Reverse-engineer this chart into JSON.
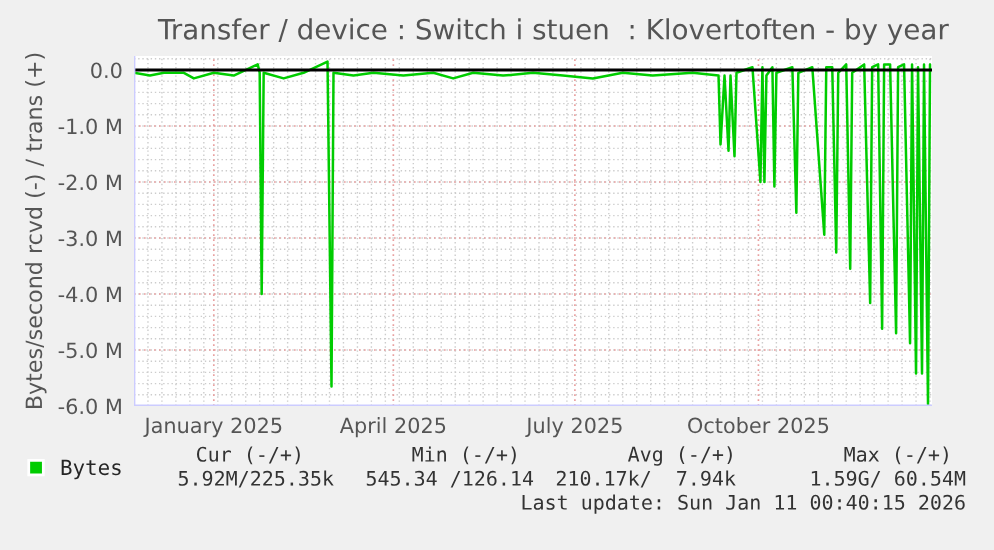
{
  "chart_data": {
    "type": "line",
    "title": "Transfer / device : Switch i stuen  : Klovertoften - by year",
    "ylabel": "Bytes/second rcvd (-) / trans (+)",
    "x": [
      "2024-12-07",
      "2024-12-15",
      "2024-12-22",
      "2025-01-01",
      "2025-01-06",
      "2025-01-16",
      "2025-01-26",
      "2025-02-07",
      "2025-02-08",
      "2025-02-09",
      "2025-02-10",
      "2025-02-20",
      "2025-03-02",
      "2025-03-14",
      "2025-03-16",
      "2025-03-17",
      "2025-03-27",
      "2025-04-06",
      "2025-04-21",
      "2025-05-06",
      "2025-05-16",
      "2025-05-26",
      "2025-06-10",
      "2025-06-25",
      "2025-07-10",
      "2025-07-25",
      "2025-08-09",
      "2025-08-24",
      "2025-09-13",
      "2025-09-26",
      "2025-09-27",
      "2025-09-29",
      "2025-10-01",
      "2025-10-02",
      "2025-10-04",
      "2025-10-05",
      "2025-10-13",
      "2025-10-17",
      "2025-10-18",
      "2025-10-19",
      "2025-10-20",
      "2025-10-23",
      "2025-10-24",
      "2025-10-25",
      "2025-11-02",
      "2025-11-04",
      "2025-11-05",
      "2025-11-12",
      "2025-11-18",
      "2025-11-19",
      "2025-11-22",
      "2025-11-24",
      "2025-11-25",
      "2025-11-29",
      "2025-12-01",
      "2025-12-02",
      "2025-12-08",
      "2025-12-11",
      "2025-12-12",
      "2025-12-15",
      "2025-12-17",
      "2025-12-18",
      "2025-12-21",
      "2025-12-24",
      "2025-12-25",
      "2025-12-28",
      "2025-12-31",
      "2026-01-01",
      "2026-01-03",
      "2026-01-04",
      "2026-01-06",
      "2026-01-07",
      "2026-01-09",
      "2026-01-10"
    ],
    "series": [
      {
        "name": "Bytes",
        "color": "#00cc00",
        "values": [
          -50000,
          -100000,
          -50000,
          -50000,
          -150000,
          -50000,
          -100000,
          100000,
          -50000,
          -4000000,
          -50000,
          -150000,
          -50000,
          150000,
          -5650000,
          -50000,
          -100000,
          -50000,
          -100000,
          -50000,
          -150000,
          -50000,
          -100000,
          -50000,
          -100000,
          -150000,
          -50000,
          -100000,
          -50000,
          -100000,
          -1330000,
          -100000,
          -1440000,
          -100000,
          -1540000,
          -50000,
          50000,
          -2000000,
          50000,
          -2000000,
          -100000,
          50000,
          -2080000,
          -50000,
          50000,
          -2550000,
          -50000,
          50000,
          -2940000,
          50000,
          50000,
          -3260000,
          -50000,
          100000,
          -3550000,
          -50000,
          100000,
          -4160000,
          50000,
          100000,
          -4620000,
          100000,
          100000,
          -4700000,
          50000,
          100000,
          -4880000,
          100000,
          -5420000,
          50000,
          -5420000,
          100000,
          -5970000,
          100000
        ]
      }
    ],
    "xlim": [
      "2024-12-07",
      "2026-01-11"
    ],
    "xticks": [
      {
        "value": "2025-01-16",
        "label": "January 2025"
      },
      {
        "value": "2025-04-16",
        "label": "April 2025"
      },
      {
        "value": "2025-07-16",
        "label": "July 2025"
      },
      {
        "value": "2025-10-16",
        "label": "October 2025"
      }
    ],
    "ylim": [
      -6000000,
      250000
    ],
    "yticks": [
      {
        "value": -6000000,
        "label": "-6.0 M"
      },
      {
        "value": -5000000,
        "label": "-5.0 M"
      },
      {
        "value": -4000000,
        "label": "-4.0 M"
      },
      {
        "value": -3000000,
        "label": "-3.0 M"
      },
      {
        "value": -2000000,
        "label": "-2.0 M"
      },
      {
        "value": -1000000,
        "label": "-1.0 M"
      },
      {
        "value": 0,
        "label": "0.0"
      }
    ],
    "ref_lines": [
      {
        "axis": "y",
        "value": 0,
        "color": "#000000"
      }
    ],
    "grid": true,
    "legend": "bottom left",
    "annotations": [
      "Cur (-/+)",
      "Min (-/+)",
      "Avg (-/+)",
      "Max (-/+)",
      "5.92M/225.35k",
      "545.34 /126.14",
      "210.17k/  7.94k",
      "1.59G/ 60.54M",
      "Last update: Sun Jan 11 00:40:15 2026"
    ]
  }
}
